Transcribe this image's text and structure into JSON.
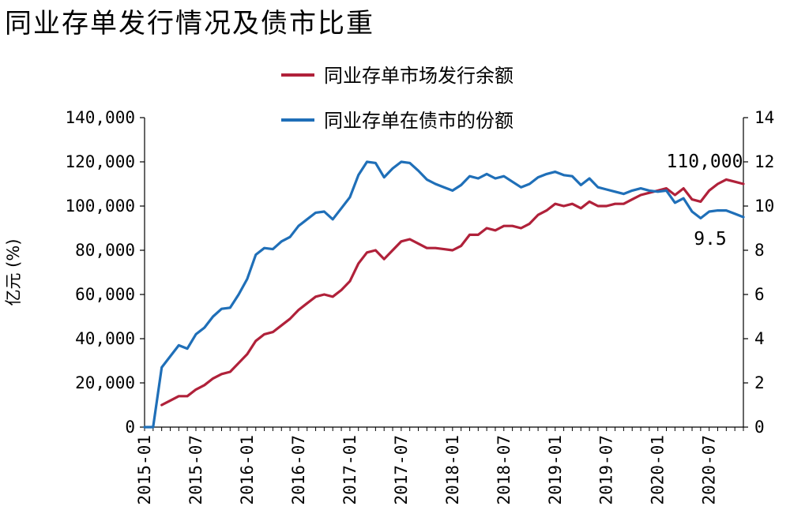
{
  "title": "同业存单发行情况及债市比重",
  "chart_data": {
    "type": "line",
    "title": "同业存单发行情况及债市比重",
    "ylabel": "亿元 (%)",
    "ylim": [
      0,
      140000
    ],
    "y2lim": [
      0,
      14
    ],
    "yticks": [
      0,
      20000,
      40000,
      60000,
      80000,
      100000,
      120000,
      140000
    ],
    "y2ticks": [
      0,
      2,
      4,
      6,
      8,
      10,
      12,
      14
    ],
    "ytick_labels": [
      "0",
      "20,000",
      "40,000",
      "60,000",
      "80,000",
      "100,000",
      "120,000",
      "140,000"
    ],
    "y2tick_labels": [
      "0",
      "2",
      "4",
      "6",
      "8",
      "10",
      "12",
      "14"
    ],
    "xtick_labels": [
      "2015-01",
      "2015-07",
      "2016-01",
      "2016-07",
      "2017-01",
      "2017-07",
      "2018-01",
      "2018-07",
      "2019-01",
      "2019-07",
      "2020-01",
      "2020-07"
    ],
    "x_start": "2015-01",
    "legend_position": "top",
    "series": [
      {
        "name": "同业存单市场发行余额",
        "axis": "left",
        "color": "#b0213a",
        "start": "2015-03",
        "values": [
          10000,
          12000,
          14000,
          14000,
          17000,
          19000,
          22000,
          24000,
          25000,
          29000,
          33000,
          39000,
          42000,
          43000,
          46000,
          49000,
          53000,
          56000,
          59000,
          60000,
          59000,
          62000,
          66000,
          74000,
          79000,
          80000,
          76000,
          80000,
          84000,
          85000,
          83000,
          81000,
          81000,
          80500,
          80000,
          82000,
          87000,
          87000,
          90000,
          89000,
          91000,
          91000,
          90000,
          92000,
          96000,
          98000,
          101000,
          100000,
          101000,
          99000,
          102000,
          100000,
          100000,
          101000,
          101000,
          103000,
          105000,
          106000,
          107000,
          108000,
          105000,
          108000,
          103000,
          102000,
          107000,
          110000,
          112000,
          111000,
          110000
        ]
      },
      {
        "name": "同业存单在债市的份额",
        "axis": "right",
        "color": "#1f6fb8",
        "start": "2015-01",
        "values": [
          0,
          0,
          2.7,
          3.2,
          3.7,
          3.55,
          4.2,
          4.5,
          5.0,
          5.35,
          5.4,
          6.0,
          6.7,
          7.8,
          8.1,
          8.05,
          8.4,
          8.6,
          9.1,
          9.4,
          9.7,
          9.75,
          9.4,
          9.9,
          10.4,
          11.4,
          12.0,
          11.95,
          11.3,
          11.7,
          12.0,
          11.95,
          11.6,
          11.2,
          11.0,
          10.85,
          10.7,
          10.95,
          11.35,
          11.25,
          11.45,
          11.25,
          11.35,
          11.1,
          10.85,
          11.0,
          11.3,
          11.45,
          11.55,
          11.4,
          11.35,
          10.95,
          11.25,
          10.85,
          10.75,
          10.65,
          10.55,
          10.7,
          10.8,
          10.7,
          10.65,
          10.7,
          10.15,
          10.35,
          9.75,
          9.45,
          9.75,
          9.8,
          9.8,
          9.65,
          9.5
        ]
      }
    ],
    "annotations": [
      {
        "text": "110,000",
        "series": 0
      },
      {
        "text": "9.5",
        "series": 1
      }
    ]
  }
}
